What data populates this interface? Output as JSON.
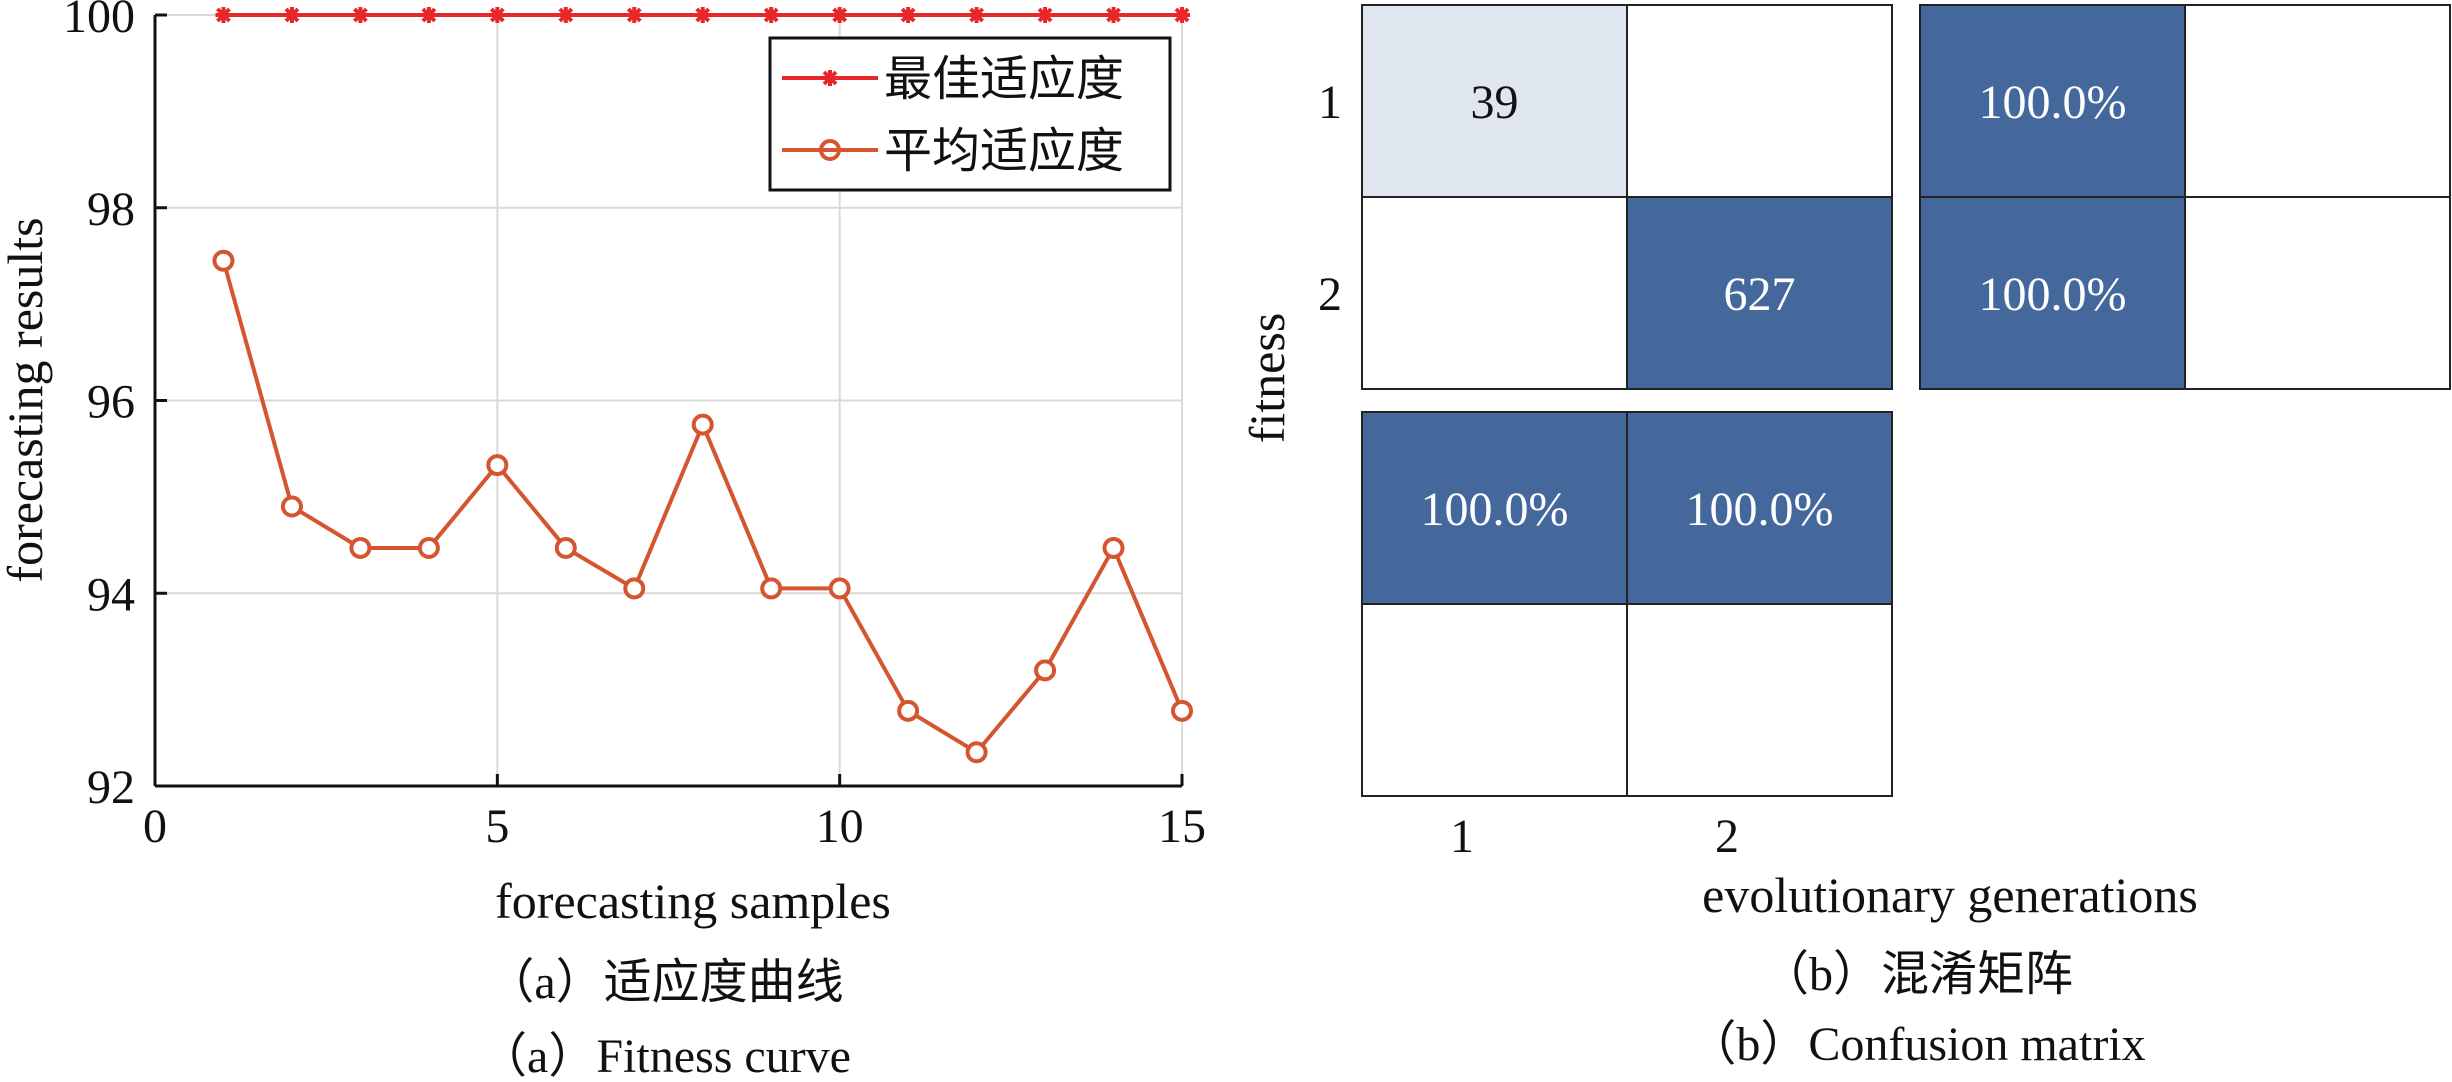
{
  "chart_data": [
    {
      "type": "line",
      "xlabel": "forecasting samples",
      "ylabel": "forecasting results",
      "xlim": [
        0,
        15
      ],
      "ylim": [
        92,
        100
      ],
      "x_ticks": [
        "0",
        "5",
        "10",
        "15"
      ],
      "y_ticks": [
        "92",
        "94",
        "96",
        "98",
        "100"
      ],
      "grid": true,
      "legend_position": "top-right",
      "x": [
        1,
        2,
        3,
        4,
        5,
        6,
        7,
        8,
        9,
        10,
        11,
        12,
        13,
        14,
        15
      ],
      "series": [
        {
          "name": "最佳适应度",
          "color": "#e8272a",
          "marker": "asterisk",
          "values": [
            100,
            100,
            100,
            100,
            100,
            100,
            100,
            100,
            100,
            100,
            100,
            100,
            100,
            100,
            100
          ]
        },
        {
          "name": "平均适应度",
          "color": "#d4552f",
          "marker": "circle",
          "values": [
            97.45,
            94.9,
            94.47,
            94.47,
            95.33,
            94.47,
            94.05,
            95.75,
            94.05,
            94.05,
            92.78,
            92.35,
            93.2,
            94.47,
            92.78
          ]
        }
      ],
      "caption_cn": "（a）适应度曲线",
      "caption_en": "（a）Fitness curve"
    },
    {
      "type": "heatmap",
      "xlabel": "evolutionary generations",
      "ylabel": "fitness",
      "x_ticks": [
        "1",
        "2"
      ],
      "y_ticks": [
        "1",
        "2"
      ],
      "matrix": [
        [
          "39",
          ""
        ],
        [
          "",
          "627"
        ]
      ],
      "row_summary": [
        [
          "100.0%",
          ""
        ],
        [
          "100.0%",
          ""
        ]
      ],
      "col_summary": [
        [
          "100.0%",
          "100.0%"
        ],
        [
          "",
          ""
        ]
      ],
      "colors": {
        "dark": "#44689c",
        "light": "#dfe6ef",
        "empty": "#ffffff",
        "dark_text": "#ffffff",
        "light_text": "#111111"
      },
      "caption_cn": "（b）混淆矩阵",
      "caption_en": "（b）Confusion matrix"
    }
  ]
}
